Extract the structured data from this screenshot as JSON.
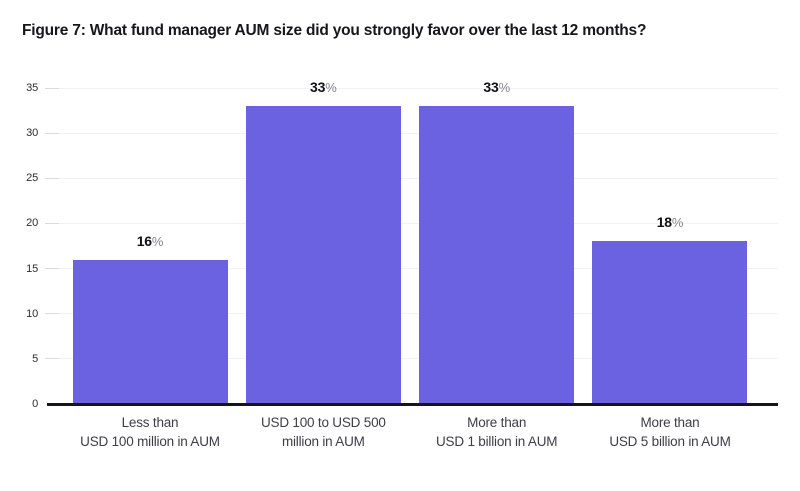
{
  "figure": {
    "title": "Figure 7: What fund manager AUM size did you strongly favor over the last 12 months?"
  },
  "chart_data": {
    "type": "bar",
    "title": "Figure 7: What fund manager AUM size did you strongly favor over the last 12 months?",
    "categories": [
      [
        "Less than",
        "USD 100 million in AUM"
      ],
      [
        "USD 100 to USD 500",
        "million in AUM"
      ],
      [
        "More than",
        "USD 1 billion in AUM"
      ],
      [
        "More than",
        "USD 5 billion in AUM"
      ]
    ],
    "values": [
      16,
      33,
      33,
      18
    ],
    "value_labels": [
      "16",
      "33",
      "33",
      "18"
    ],
    "unit": "%",
    "xlabel": "",
    "ylabel": "",
    "ylim": [
      0,
      35
    ],
    "yticks": [
      0,
      5,
      10,
      15,
      20,
      25,
      30,
      35
    ],
    "grid": "horizontal",
    "legend_position": "none",
    "colors": {
      "bar": "#6B62E1",
      "gridline": "#f4f1f6",
      "tick_mark": "#dbd8e0",
      "baseline": "#15151f",
      "value_text": "#101016",
      "percent_sign": "#85858f",
      "axis_text": "#2b2b33",
      "category_text": "#3d3d49"
    }
  }
}
